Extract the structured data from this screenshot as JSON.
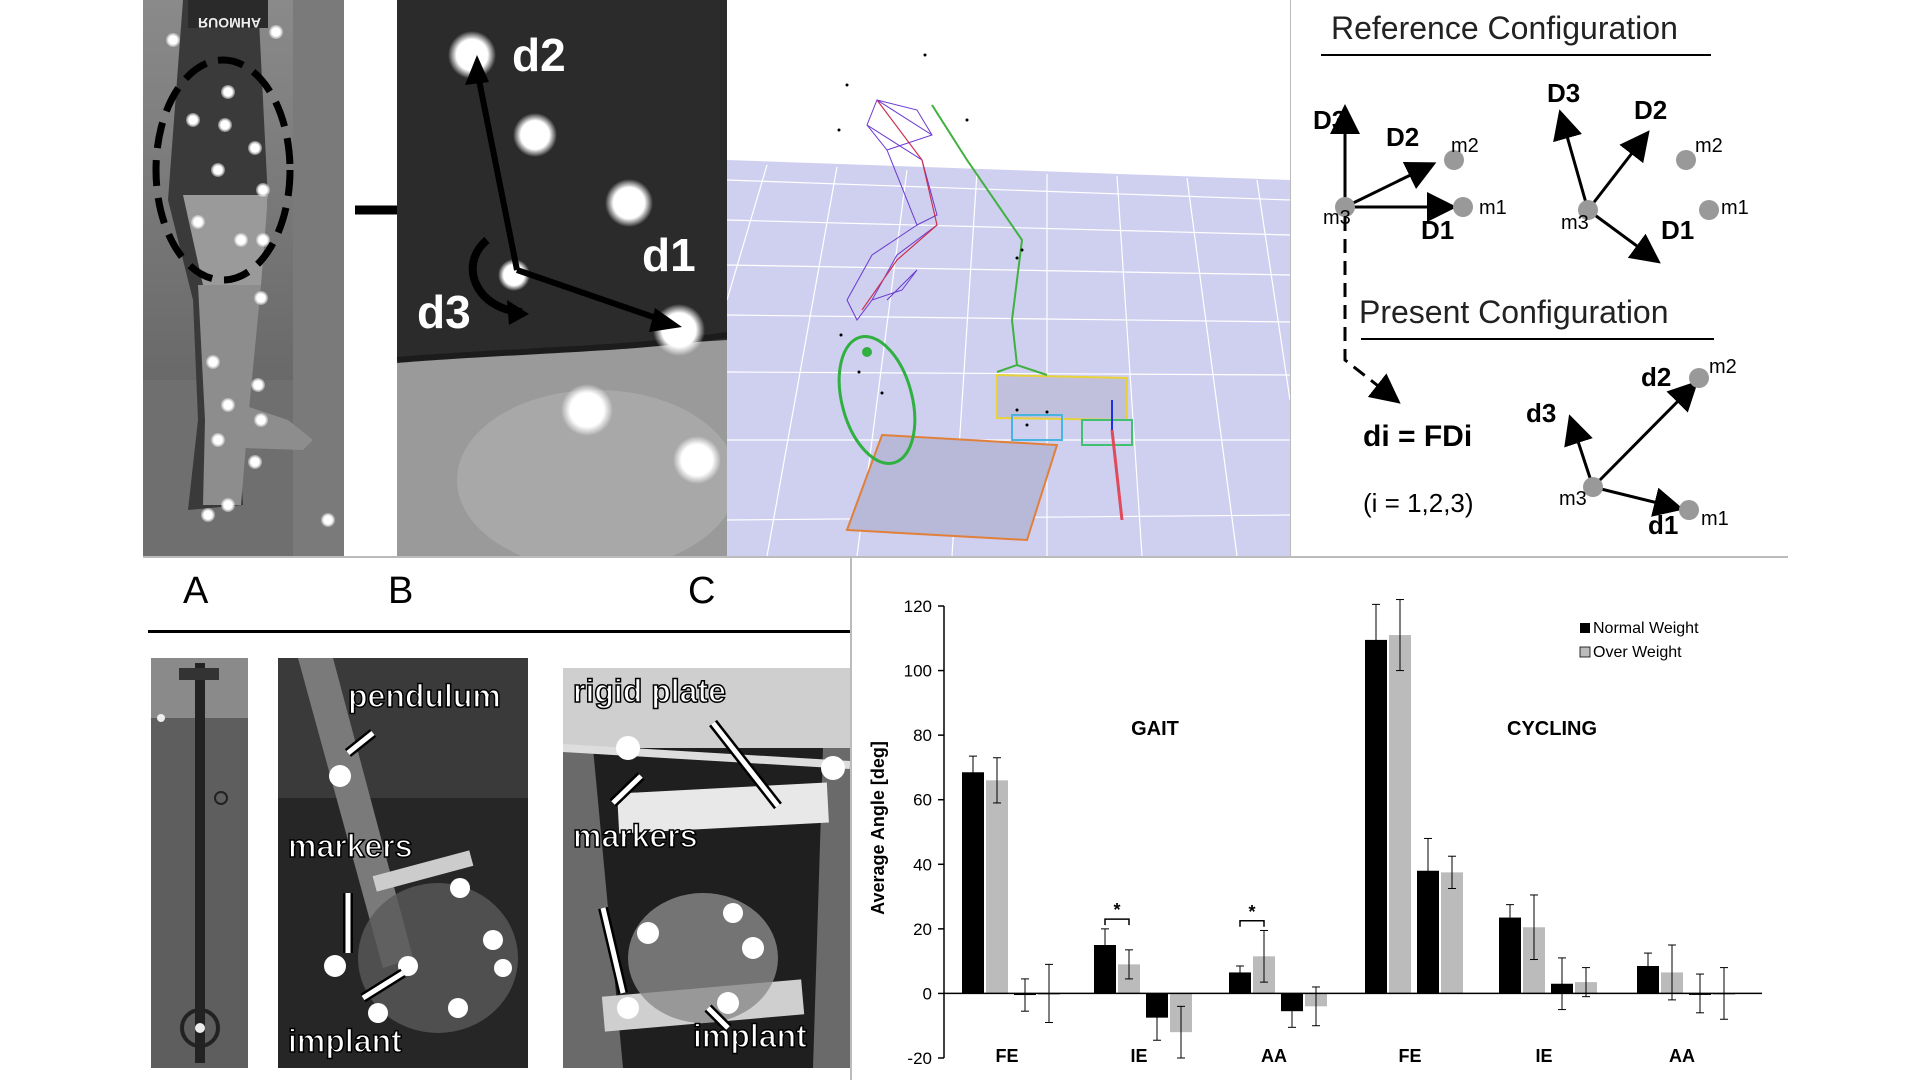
{
  "legPhotos": {
    "d2": "d2",
    "d1": "d1",
    "d3": "d3",
    "shortsText": "RUOMHA"
  },
  "diagram": {
    "refTitle": "Reference Configuration",
    "presentTitle": "Present Configuration",
    "equation": "di = FDi",
    "indices": "(i = 1,2,3)",
    "D1": "D1",
    "D2": "D2",
    "D3": "D3",
    "Dsup1": "D1",
    "Dsup2": "D2",
    "Dsup3": "D3",
    "m1": "m1",
    "m2": "m2",
    "m3": "m3",
    "d1": "d1",
    "d2": "d2",
    "d3": "d3"
  },
  "setup": {
    "labelA": "A",
    "labelB": "B",
    "labelC": "C",
    "pendulum": "pendulum",
    "markersB": "markers",
    "implantB": "implant",
    "rigidPlate": "rigid plate",
    "markersC": "markers",
    "implantC": "implant"
  },
  "chart_data": {
    "type": "bar",
    "ylabel": "Average Angle [deg]",
    "ylim": [
      -20,
      120
    ],
    "yticks": [
      -20,
      0,
      20,
      40,
      60,
      80,
      100,
      120
    ],
    "groupLabels": [
      "GAIT",
      "CYCLING"
    ],
    "categories": [
      "FE",
      "IE",
      "AA",
      "FE",
      "IE",
      "AA"
    ],
    "legend": [
      "Normal Weight",
      "Over Weight"
    ],
    "series": [
      {
        "name": "Normal Weight",
        "color": "#000000",
        "values": [
          68.5,
          15,
          6.5,
          109.5,
          23.5,
          8.5
        ],
        "errors": [
          5,
          5,
          2,
          11,
          4,
          4
        ]
      },
      {
        "name": "Over Weight",
        "color": "#bbbbbb",
        "values": [
          66,
          9,
          11.5,
          111,
          20.5,
          6.5
        ],
        "errors": [
          7,
          4.5,
          8,
          11,
          10,
          8.5
        ]
      },
      {
        "name": "Normal Weight (min)",
        "color": "#000000",
        "values": [
          -0.5,
          -7.5,
          -5.5,
          38,
          3,
          0
        ],
        "errors": [
          5,
          7,
          5,
          10,
          8,
          6
        ]
      },
      {
        "name": "Over Weight (min)",
        "color": "#bbbbbb",
        "values": [
          0,
          -12,
          -4,
          37.5,
          3.5,
          0
        ],
        "errors": [
          9,
          8,
          6,
          5,
          4.5,
          8
        ]
      }
    ],
    "significance": [
      "*",
      "*"
    ]
  }
}
